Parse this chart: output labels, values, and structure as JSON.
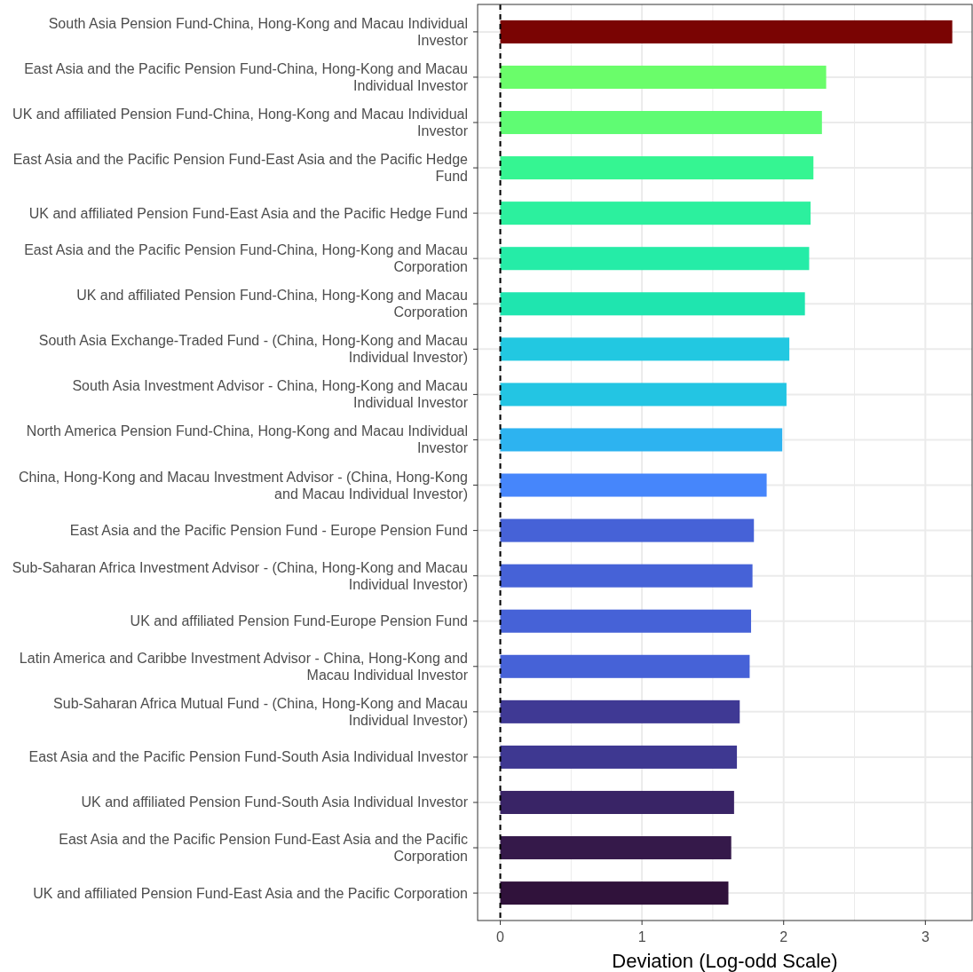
{
  "chart_data": {
    "type": "bar",
    "orientation": "horizontal",
    "xlabel": "Deviation (Log-odd Scale)",
    "categories": [
      "South Asia Pension Fund-China, Hong-Kong and Macau Individual Investor",
      "East Asia and the Pacific Pension Fund-China, Hong-Kong and Macau Individual Investor",
      "UK and affiliated Pension Fund-China, Hong-Kong and Macau Individual Investor",
      "East Asia and the Pacific Pension Fund-East Asia and the Pacific Hedge Fund",
      "UK and affiliated Pension Fund-East Asia and the Pacific Hedge Fund",
      "East Asia and the Pacific Pension Fund-China, Hong-Kong and Macau Corporation",
      "UK and affiliated Pension Fund-China, Hong-Kong and Macau Corporation",
      "South Asia Exchange-Traded Fund - (China, Hong-Kong and Macau Individual Investor)",
      "South Asia Investment Advisor - China, Hong-Kong and Macau Individual Investor",
      "North America Pension Fund-China, Hong-Kong and Macau Individual Investor",
      "China, Hong-Kong and Macau Investment Advisor - (China, Hong-Kong and Macau Individual Investor)",
      "East Asia and the Pacific Pension Fund - Europe Pension Fund",
      "Sub-Saharan Africa Investment Advisor - (China, Hong-Kong and Macau Individual Investor)",
      "UK and affiliated Pension Fund-Europe Pension Fund",
      "Latin America and Caribbe Investment Advisor - China, Hong-Kong and Macau Individual Investor",
      "Sub-Saharan Africa Mutual Fund - (China, Hong-Kong and Macau Individual Investor)",
      "East Asia and the Pacific Pension Fund-South Asia Individual Investor",
      "UK and affiliated Pension Fund-South Asia Individual Investor",
      "East Asia and the Pacific Pension Fund-East Asia and the Pacific Corporation",
      "UK and affiliated Pension Fund-East Asia and the Pacific Corporation"
    ],
    "values": [
      3.19,
      2.3,
      2.27,
      2.21,
      2.19,
      2.18,
      2.15,
      2.04,
      2.02,
      1.99,
      1.88,
      1.79,
      1.78,
      1.77,
      1.76,
      1.69,
      1.67,
      1.65,
      1.63,
      1.61
    ],
    "colors": [
      "#7a0403",
      "#6afd6a",
      "#5ffc73",
      "#35f592",
      "#2cf09e",
      "#25eca7",
      "#1fe5af",
      "#22c8e1",
      "#23c5e3",
      "#2db3f0",
      "#4686fb",
      "#4662d7",
      "#4662d7",
      "#4662d7",
      "#4662d7",
      "#3f3994",
      "#3e3891",
      "#392466",
      "#35194a",
      "#30123b"
    ],
    "xlim": [
      -0.16,
      3.33
    ],
    "xticks": [
      0,
      1,
      2,
      3
    ],
    "grid": true,
    "ref_lines": [
      {
        "axis": "x",
        "value": 0,
        "line_style": "dashed",
        "color": "#000000"
      }
    ]
  }
}
